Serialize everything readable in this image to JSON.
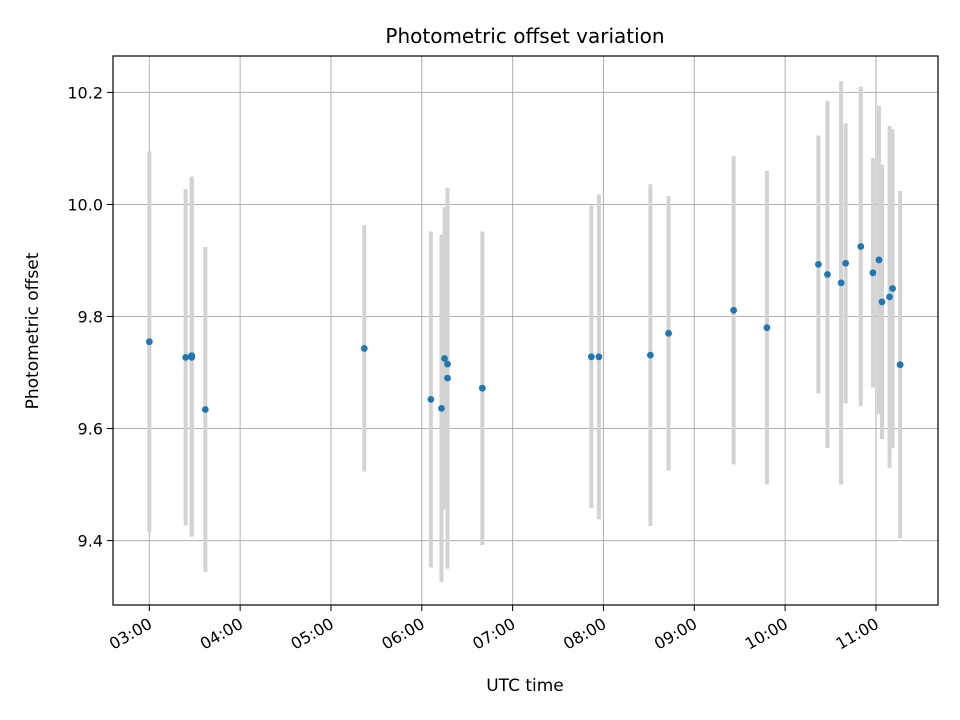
{
  "chart_data": {
    "type": "scatter",
    "title": "Photometric offset variation",
    "xlabel": "UTC time",
    "ylabel": "Photometric offset",
    "x_axis_type": "time",
    "x_ticks": [
      "03:00",
      "04:00",
      "05:00",
      "06:00",
      "07:00",
      "08:00",
      "09:00",
      "10:00",
      "11:00"
    ],
    "xlim": [
      "02:36",
      "11:41"
    ],
    "y_ticks": [
      9.4,
      9.6,
      9.8,
      10.0,
      10.2
    ],
    "ylim": [
      9.285,
      10.265
    ],
    "grid": true,
    "legend": "none",
    "point_color": "#1f77b4",
    "errorbar_color": "#d3d3d3",
    "points": [
      {
        "x": "03:00",
        "y": 9.755,
        "err": 0.34
      },
      {
        "x": "03:24",
        "y": 9.727,
        "err": 0.3
      },
      {
        "x": "03:28",
        "y": 9.73,
        "err": 0.32
      },
      {
        "x": "03:28",
        "y": 9.727,
        "err": 0.32
      },
      {
        "x": "03:37",
        "y": 9.634,
        "err": 0.29
      },
      {
        "x": "05:22",
        "y": 9.743,
        "err": 0.22
      },
      {
        "x": "06:06",
        "y": 9.652,
        "err": 0.3
      },
      {
        "x": "06:13",
        "y": 9.636,
        "err": 0.31
      },
      {
        "x": "06:15",
        "y": 9.725,
        "err": 0.27
      },
      {
        "x": "06:17",
        "y": 9.715,
        "err": 0.28
      },
      {
        "x": "06:17",
        "y": 9.69,
        "err": 0.34
      },
      {
        "x": "06:40",
        "y": 9.672,
        "err": 0.28
      },
      {
        "x": "07:52",
        "y": 9.728,
        "err": 0.27
      },
      {
        "x": "07:57",
        "y": 9.728,
        "err": 0.29
      },
      {
        "x": "08:31",
        "y": 9.731,
        "err": 0.305
      },
      {
        "x": "08:43",
        "y": 9.77,
        "err": 0.245
      },
      {
        "x": "09:26",
        "y": 9.811,
        "err": 0.275
      },
      {
        "x": "09:48",
        "y": 9.78,
        "err": 0.28
      },
      {
        "x": "10:22",
        "y": 9.893,
        "err": 0.23
      },
      {
        "x": "10:28",
        "y": 9.875,
        "err": 0.31
      },
      {
        "x": "10:37",
        "y": 9.86,
        "err": 0.36
      },
      {
        "x": "10:40",
        "y": 9.895,
        "err": 0.25
      },
      {
        "x": "10:50",
        "y": 9.925,
        "err": 0.285
      },
      {
        "x": "10:58",
        "y": 9.878,
        "err": 0.205
      },
      {
        "x": "11:02",
        "y": 9.901,
        "err": 0.275
      },
      {
        "x": "11:04",
        "y": 9.826,
        "err": 0.245
      },
      {
        "x": "11:09",
        "y": 9.835,
        "err": 0.305
      },
      {
        "x": "11:11",
        "y": 9.85,
        "err": 0.285
      },
      {
        "x": "11:16",
        "y": 9.714,
        "err": 0.31
      }
    ]
  }
}
